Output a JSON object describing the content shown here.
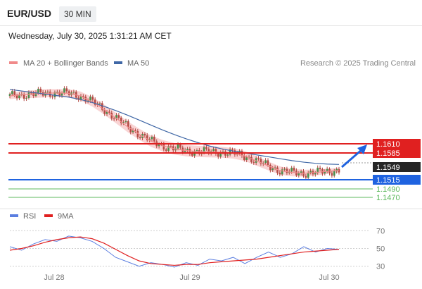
{
  "header": {
    "pair": "EUR/USD",
    "timeframe": "30 MIN",
    "datetime": "Wednesday, July 30, 2025 1:31:21 AM CET"
  },
  "colors": {
    "candle": "#b34a44",
    "ma20": "#f08a8a",
    "bollinger_fill": "#f7c9c9",
    "ma50": "#3f67a6",
    "resistance": "#e02020",
    "pivot": "#1f63e0",
    "support": "#5cb85c",
    "current": "#262626",
    "rsi": "#5b7ee0",
    "rsi_ma": "#e02020"
  },
  "chart_data": [
    {
      "type": "line",
      "legend": [
        "MA 20 + Bollinger Bands",
        "MA 50"
      ],
      "credit": "Research © 2025 Trading Central",
      "x_ticks": [
        "Jul 28",
        "Jul 29",
        "Jul 30"
      ],
      "price_levels": [
        {
          "label": "1.1610",
          "kind": "resistance"
        },
        {
          "label": "1.1585",
          "kind": "resistance"
        },
        {
          "label": "1.1549",
          "kind": "current"
        },
        {
          "label": "1.1515",
          "kind": "pivot"
        },
        {
          "label": "1.1490",
          "kind": "support"
        },
        {
          "label": "1.1470",
          "kind": "support"
        }
      ],
      "series": [
        {
          "name": "MA 20 + Bollinger Bands",
          "values": [
            1.1735,
            1.1738,
            1.174,
            1.1742,
            1.1743,
            1.1742,
            1.1735,
            1.172,
            1.17,
            1.1678,
            1.1655,
            1.1635,
            1.1617,
            1.1605,
            1.1597,
            1.1592,
            1.159,
            1.1589,
            1.1588,
            1.1585,
            1.1578,
            1.1565,
            1.1552,
            1.154,
            1.1535,
            1.1533,
            1.1535,
            1.1538,
            1.1541
          ]
        },
        {
          "name": "MA 50",
          "values": [
            1.1752,
            1.1748,
            1.1744,
            1.174,
            1.1736,
            1.1732,
            1.1726,
            1.1718,
            1.1708,
            1.1697,
            1.1685,
            1.1672,
            1.1659,
            1.1646,
            1.1634,
            1.1623,
            1.1613,
            1.1604,
            1.1597,
            1.1591,
            1.1586,
            1.1581,
            1.1576,
            1.1571,
            1.1566,
            1.1562,
            1.1559,
            1.1557,
            1.1556
          ]
        }
      ]
    },
    {
      "type": "line",
      "legend": [
        "RSI",
        "9MA"
      ],
      "y_ticks": [
        "70",
        "50",
        "30"
      ],
      "ylim": [
        25,
        75
      ],
      "series": [
        {
          "name": "RSI",
          "values": [
            52,
            48,
            55,
            60,
            58,
            64,
            62,
            58,
            50,
            40,
            35,
            30,
            34,
            32,
            29,
            34,
            31,
            38,
            36,
            40,
            33,
            40,
            46,
            40,
            44,
            52,
            46,
            50,
            49
          ]
        },
        {
          "name": "9MA",
          "values": [
            48,
            50,
            53,
            57,
            60,
            62,
            63,
            61,
            56,
            49,
            42,
            36,
            33,
            32,
            31,
            32,
            32,
            34,
            35,
            36,
            37,
            38,
            40,
            42,
            44,
            46,
            47,
            48,
            49
          ]
        }
      ]
    }
  ]
}
